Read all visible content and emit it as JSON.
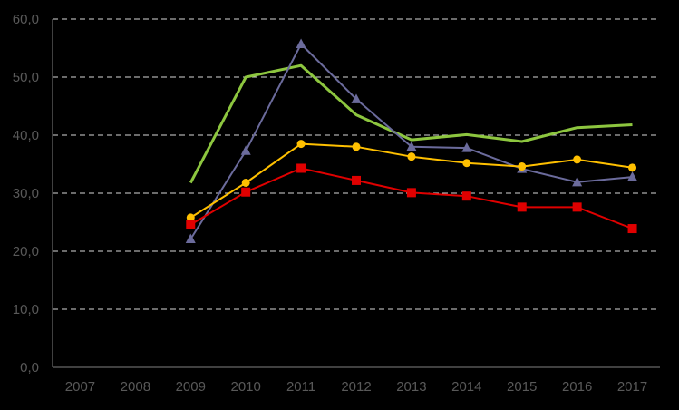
{
  "chart_data": {
    "type": "line",
    "title": "",
    "xlabel": "",
    "ylabel": "",
    "x": [
      "2007",
      "2008",
      "2009",
      "2010",
      "2011",
      "2012",
      "2013",
      "2014",
      "2015",
      "2016",
      "2017"
    ],
    "ylim": [
      0,
      60
    ],
    "yticks": [
      0,
      10,
      20,
      30,
      40,
      50,
      60
    ],
    "ytick_labels": [
      "0,0",
      "10,0",
      "20,0",
      "30,0",
      "40,0",
      "50,0",
      "60,0"
    ],
    "grid": "horizontal dashed",
    "legend": "none",
    "colors": {
      "background": "#000000",
      "gridline": "#d9d9d9",
      "axis": "#7f7f7f",
      "tick_text": "#595959"
    },
    "series": [
      {
        "color": "#8dc63f",
        "marker": "none",
        "values": [
          null,
          null,
          31.8,
          50.0,
          52.0,
          43.5,
          39.2,
          40.1,
          38.9,
          41.3,
          41.8
        ]
      },
      {
        "color": "#6b6b9c",
        "marker": "triangle",
        "values": [
          null,
          null,
          22.1,
          37.3,
          55.7,
          46.2,
          38.0,
          37.8,
          34.2,
          31.9,
          32.8
        ]
      },
      {
        "color": "#ffc000",
        "marker": "circle",
        "values": [
          null,
          null,
          25.8,
          31.8,
          38.5,
          38.0,
          36.3,
          35.2,
          34.6,
          35.8,
          34.4
        ]
      },
      {
        "color": "#e00000",
        "marker": "square",
        "values": [
          null,
          null,
          24.6,
          30.2,
          34.3,
          32.2,
          30.1,
          29.5,
          27.6,
          27.6,
          23.9
        ]
      }
    ]
  }
}
